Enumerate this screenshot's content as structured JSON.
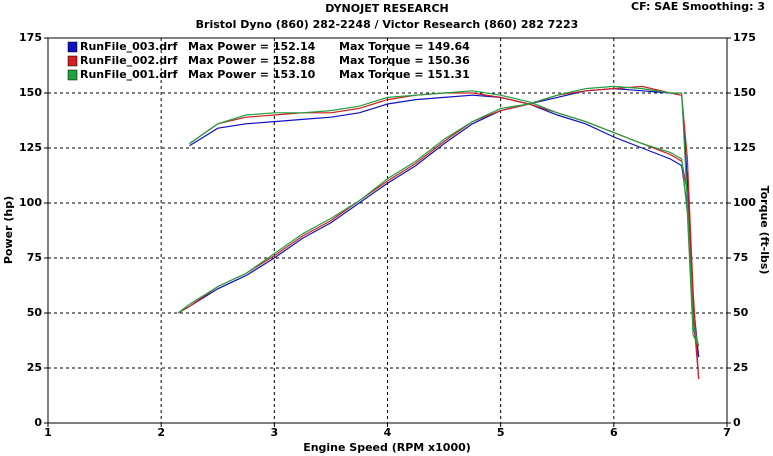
{
  "chart_data": {
    "type": "line",
    "title": "DYNOJET RESEARCH",
    "subtitle": "Bristol Dyno (860) 282-2248 / Victor Research (860) 282 7223",
    "settings_label": "CF: SAE  Smoothing: 3",
    "x_label": "Engine Speed (RPM x1000)",
    "y_label": "Power (hp)",
    "y2_label": "Torque (ft-lbs)",
    "xlim": [
      1,
      7
    ],
    "xticks": [
      1,
      2,
      3,
      4,
      5,
      6,
      7
    ],
    "ylim": [
      0,
      175
    ],
    "yticks": [
      0,
      25,
      50,
      75,
      100,
      125,
      150,
      175
    ],
    "y2lim": [
      0,
      175
    ],
    "y2ticks": [
      0,
      25,
      50,
      75,
      100,
      125,
      150,
      175
    ],
    "grid": true,
    "x": [
      2.15,
      2.25,
      2.5,
      2.75,
      3,
      3.25,
      3.5,
      3.75,
      4,
      4.25,
      4.5,
      4.75,
      5,
      5.25,
      5.5,
      5.75,
      6,
      6.25,
      6.5,
      6.6,
      6.65,
      6.7,
      6.75
    ],
    "runs": [
      {
        "name": "RunFile_003.drf",
        "color": "#1010c0",
        "max_power_label": "Max Power = 152.14",
        "max_torque_label": "Max Torque = 149.64",
        "power": [
          50,
          53,
          61,
          67,
          75,
          84,
          91,
          100,
          109,
          117,
          127,
          136,
          142,
          145,
          148,
          151,
          152,
          151,
          150,
          149,
          110,
          55,
          30
        ],
        "torque": [
          null,
          126,
          134,
          136,
          137,
          138,
          139,
          141,
          145,
          147,
          148,
          149,
          148,
          145,
          140,
          136,
          130,
          125,
          120,
          117,
          98,
          45,
          30
        ]
      },
      {
        "name": "RunFile_002.drf",
        "color": "#d02020",
        "max_power_label": "Max Power = 152.88",
        "max_torque_label": "Max Torque = 150.36",
        "power": [
          50,
          53,
          62,
          68,
          76,
          85,
          92,
          101,
          110,
          118,
          128,
          137,
          142,
          145,
          149,
          151,
          152,
          153,
          150,
          149,
          120,
          60,
          20
        ],
        "torque": [
          null,
          127,
          136,
          139,
          140,
          141,
          141,
          143,
          147,
          149,
          150,
          150,
          148,
          145,
          141,
          137,
          132,
          127,
          122,
          119,
          105,
          50,
          20
        ]
      },
      {
        "name": "RunFile_001.drf",
        "color": "#20a040",
        "max_power_label": "Max Power = 153.10",
        "max_torque_label": "Max Torque = 151.31",
        "power": [
          50,
          54,
          62,
          68,
          77,
          86,
          93,
          101,
          111,
          119,
          129,
          137,
          143,
          145,
          149,
          152,
          153,
          152,
          150,
          150,
          100,
          45,
          35
        ],
        "torque": [
          null,
          127,
          136,
          140,
          141,
          141,
          142,
          144,
          148,
          149,
          150,
          151,
          149,
          146,
          141,
          137,
          132,
          127,
          123,
          120,
          95,
          40,
          35
        ]
      }
    ]
  }
}
